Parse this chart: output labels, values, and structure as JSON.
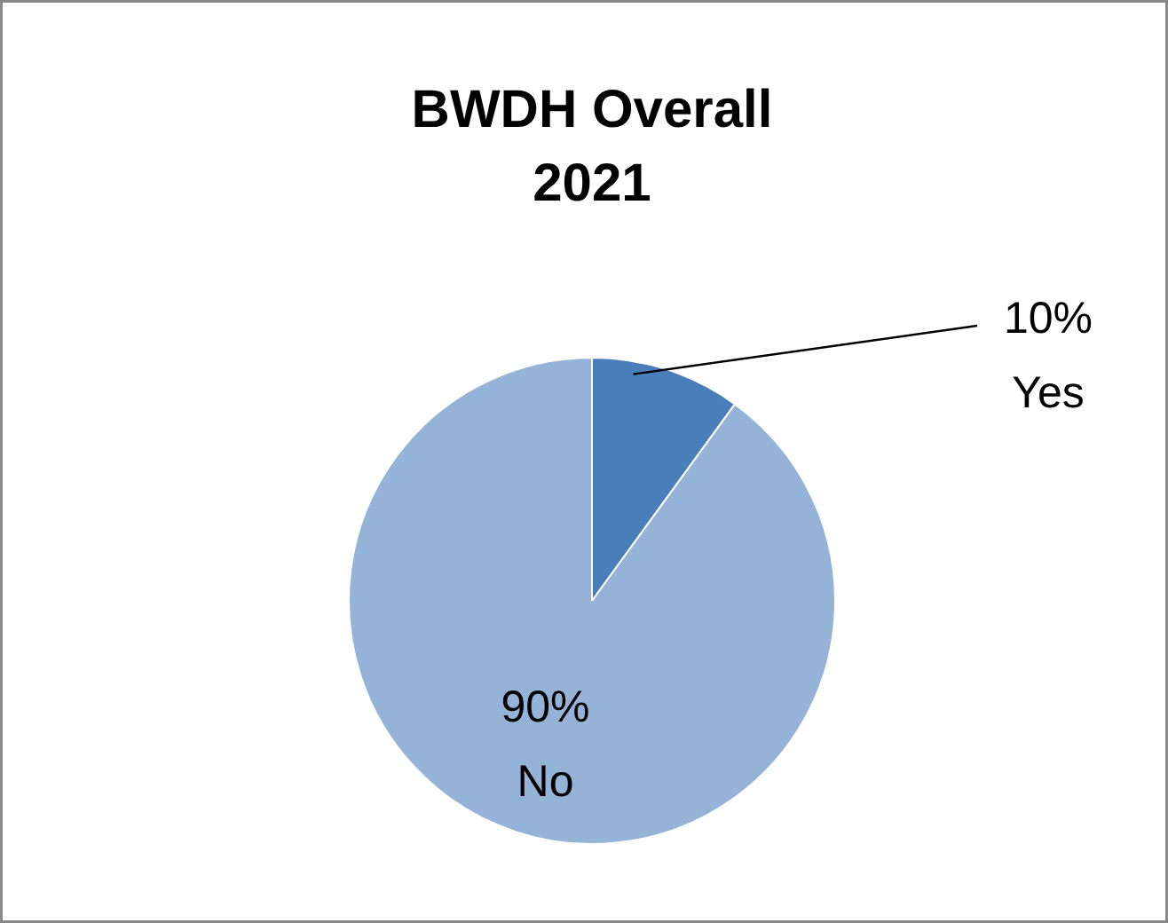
{
  "chart_data": {
    "type": "pie",
    "title": "BWDH Overall\n2021",
    "categories": [
      "Yes",
      "No"
    ],
    "values": [
      10,
      90
    ],
    "value_labels": [
      "10%",
      "90%"
    ],
    "colors": [
      "#4a7ebb",
      "#95b3d7"
    ]
  }
}
